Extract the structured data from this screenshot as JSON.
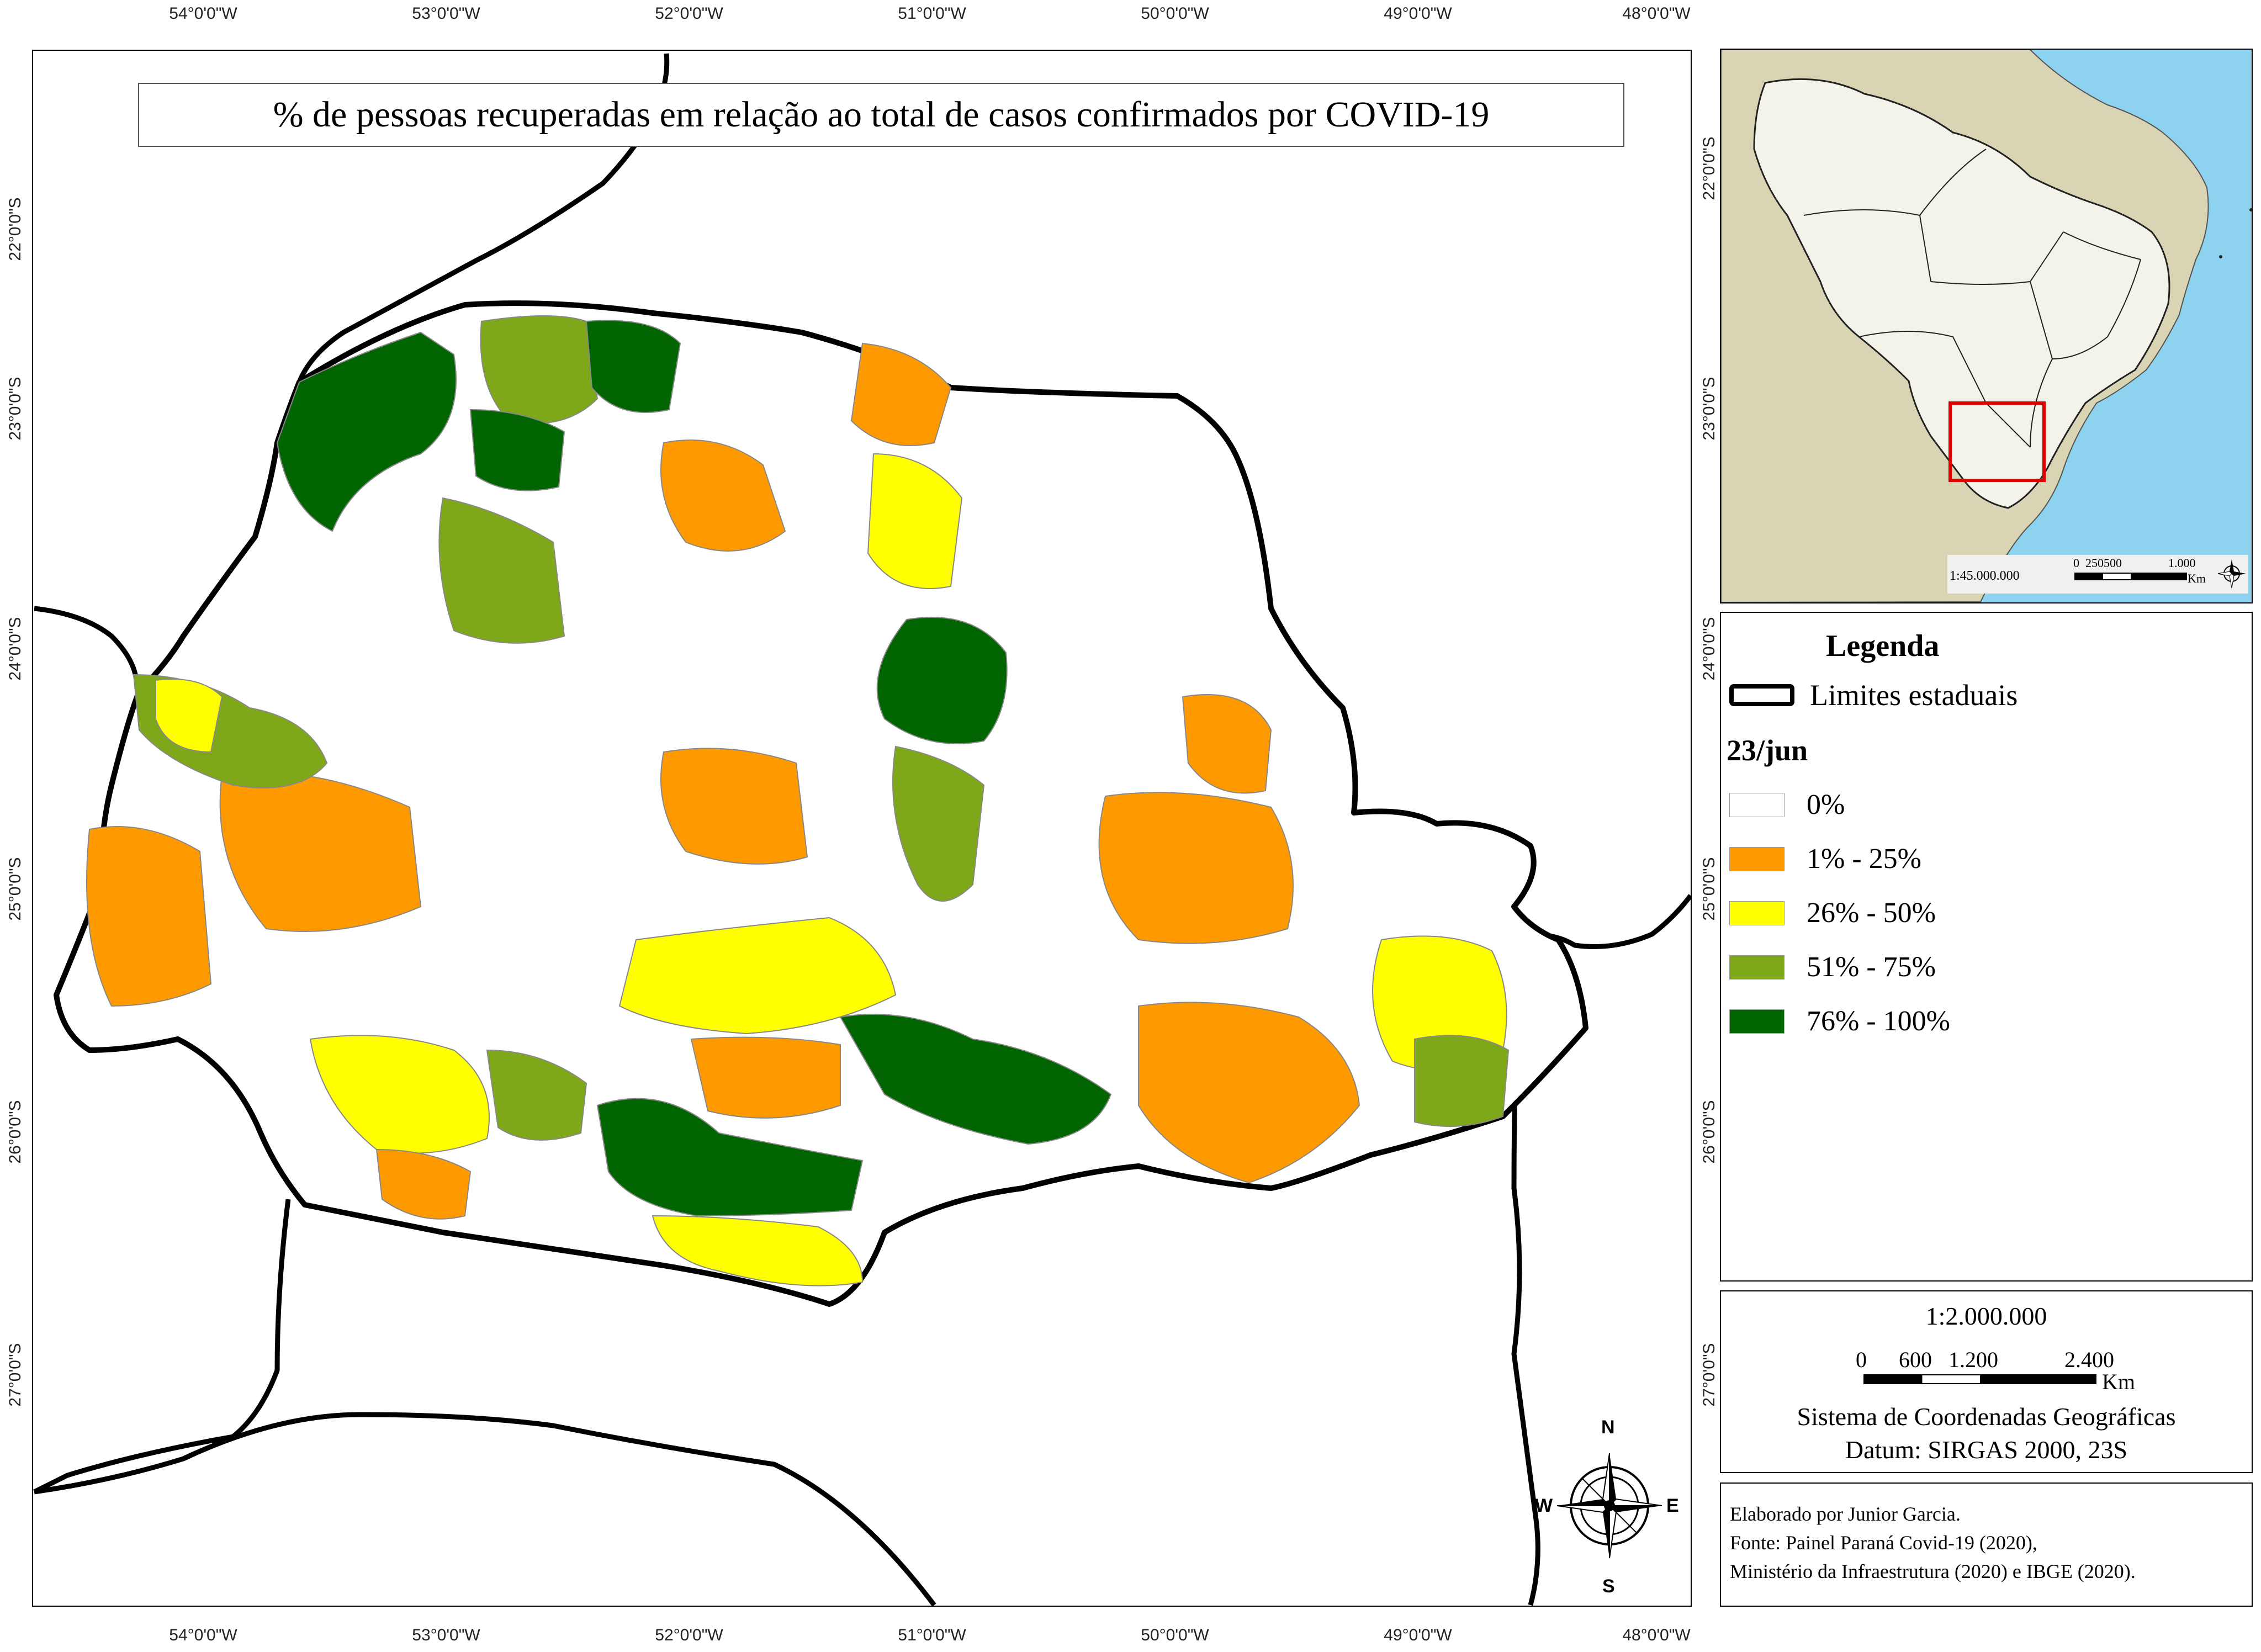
{
  "map": {
    "title": "% de pessoas recuperadas em relação ao total de casos confirmados por COVID-19",
    "lon_labels": [
      "54°0'0\"W",
      "53°0'0\"W",
      "52°0'0\"W",
      "51°0'0\"W",
      "50°0'0\"W",
      "49°0'0\"W",
      "48°0'0\"W"
    ],
    "lat_labels": [
      "22°0'0\"S",
      "23°0'0\"S",
      "24°0'0\"S",
      "25°0'0\"S",
      "26°0'0\"S",
      "27°0'0\"S"
    ],
    "compass": {
      "n": "N",
      "s": "S",
      "e": "E",
      "w": "W"
    }
  },
  "inset": {
    "scale_text": "1:45.000.000",
    "bar_labels": [
      "0",
      "250500",
      "1.000"
    ],
    "unit": "Km"
  },
  "legend": {
    "title": "Legenda",
    "boundary_label": "Limites estaduais",
    "date": "23/jun",
    "classes": [
      {
        "label": "0%",
        "color": "#ffffff"
      },
      {
        "label": "1% - 25%",
        "color": "#ff9900"
      },
      {
        "label": "26% - 50%",
        "color": "#ffff00"
      },
      {
        "label": "51% - 75%",
        "color": "#7ea719"
      },
      {
        "label": "76% - 100%",
        "color": "#006400"
      }
    ]
  },
  "scale": {
    "ratio": "1:2.000.000",
    "bar_labels": [
      "0",
      "600",
      "1.200",
      "2.400"
    ],
    "unit": "Km",
    "system": "Sistema de Coordenadas Geográficas",
    "datum": "Datum: SIRGAS 2000, 23S"
  },
  "credits": {
    "line1": "Elaborado por Junior Garcia.",
    "line2": "Fonte: Painel Paraná Covid-19 (2020),",
    "line3": "Ministério da Infraestrutura (2020) e IBGE (2020)."
  }
}
